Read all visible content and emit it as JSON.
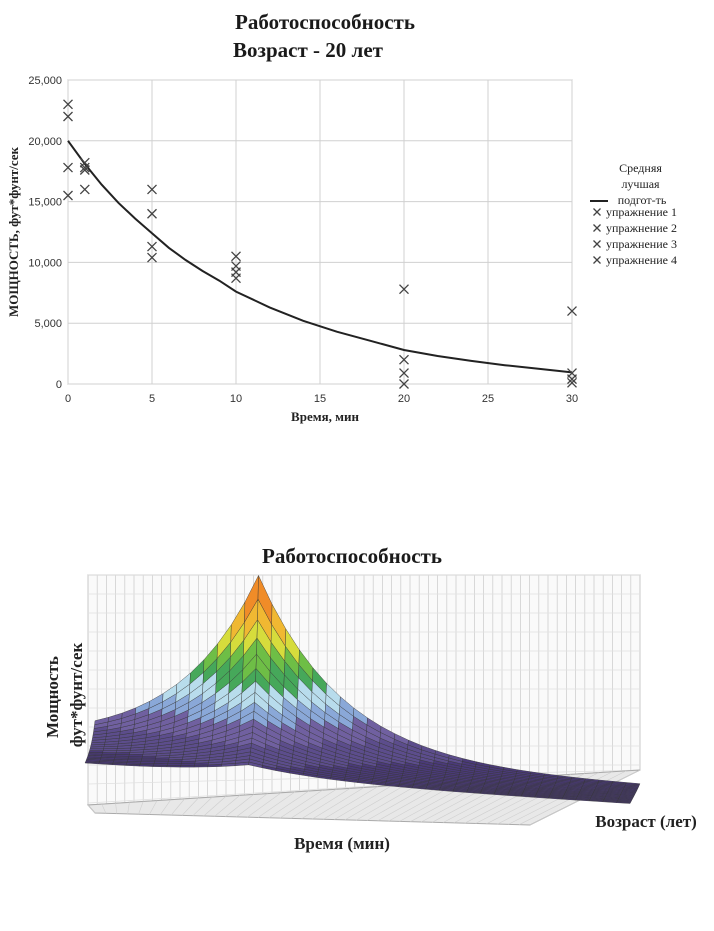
{
  "chart_data": [
    {
      "type": "scatter",
      "title": "Работоспособность",
      "subtitle": "Возраст - 20 лет",
      "xlabel": "Время, мин",
      "ylabel": "МОЩНОСТЬ, фут*фунт/сек",
      "xlim": [
        0,
        30
      ],
      "ylim": [
        0,
        25000
      ],
      "x_ticks": [
        "0",
        "5",
        "10",
        "15",
        "20",
        "25",
        "30"
      ],
      "y_ticks": [
        "0",
        "5,000",
        "10,000",
        "15,000",
        "20,000",
        "25,000"
      ],
      "grid": true,
      "legend_position": "right",
      "legend": {
        "line_label": "Средняя лучшая подгот-ть",
        "marker_labels": [
          "упражнение 1",
          "упражнение 2",
          "упражнение 3",
          "упражнение 4"
        ]
      },
      "curve": {
        "name": "Средняя лучшая подгот-ть",
        "x": [
          0,
          1,
          2,
          3,
          4,
          5,
          6,
          7,
          8,
          9,
          10,
          12,
          14,
          16,
          18,
          20,
          22,
          24,
          26,
          28,
          30
        ],
        "y": [
          20000,
          18100,
          16400,
          14900,
          13600,
          12400,
          11200,
          10200,
          9300,
          8500,
          7600,
          6300,
          5200,
          4300,
          3550,
          2800,
          2300,
          1900,
          1550,
          1250,
          950
        ]
      },
      "series": [
        {
          "name": "упражнение 1",
          "x": [
            0,
            1,
            5,
            10,
            20,
            30
          ],
          "y": [
            23000,
            18200,
            16000,
            10500,
            7800,
            6000
          ]
        },
        {
          "name": "упражнение 2",
          "x": [
            0,
            1,
            5,
            10,
            20,
            30
          ],
          "y": [
            22000,
            17800,
            14000,
            9700,
            2000,
            900
          ]
        },
        {
          "name": "упражнение 3",
          "x": [
            0,
            1,
            5,
            10,
            20,
            30
          ],
          "y": [
            17800,
            17600,
            11300,
            9200,
            900,
            400
          ]
        },
        {
          "name": "упражнение 4",
          "x": [
            0,
            1,
            5,
            10,
            20,
            30
          ],
          "y": [
            15500,
            16000,
            10400,
            8700,
            0,
            100
          ]
        }
      ],
      "colors": {
        "curve": "#222222",
        "markers": "#444444",
        "grid": "#d0d0d0"
      }
    },
    {
      "type": "surface",
      "title": "Работоспособность",
      "xlabel": "Время (мин)",
      "ylabel": "Мощность фут*фунт/сек",
      "zlabel": "Возраст (лет)",
      "color_bands": [
        "#4a3a78",
        "#5c4d8c",
        "#7060a0",
        "#8aa8d8",
        "#b8dcec",
        "#46a85a",
        "#6ebe46",
        "#d6dc3c",
        "#f0b832",
        "#f08c28",
        "#e8402a",
        "#e02c8c"
      ]
    }
  ]
}
